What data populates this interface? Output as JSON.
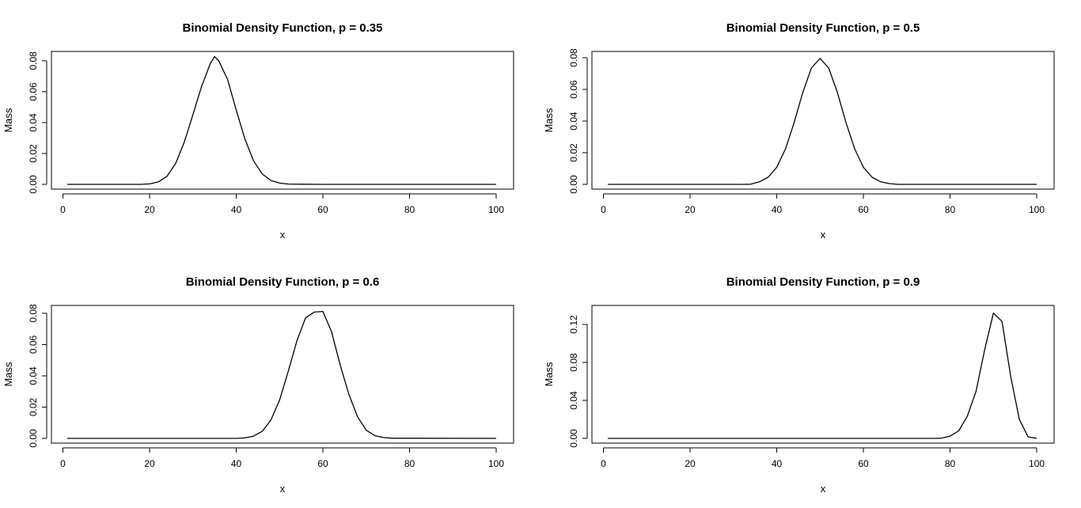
{
  "chart_data": [
    {
      "type": "line",
      "title": "Binomial Density Function, p = 0.35",
      "xlabel": "x",
      "ylabel": "Mass",
      "xlim": [
        1,
        100
      ],
      "ylim": [
        0,
        0.083
      ],
      "xticks": [
        0,
        20,
        40,
        60,
        80,
        100
      ],
      "xtick_labels": [
        "0",
        "20",
        "40",
        "60",
        "80",
        "100"
      ],
      "yticks": [
        0,
        0.02,
        0.04,
        0.06,
        0.08
      ],
      "ytick_labels": [
        "0.00",
        "0.02",
        "0.04",
        "0.06",
        "0.08"
      ],
      "grid": false,
      "x": [
        1,
        18,
        20,
        22,
        24,
        26,
        28,
        30,
        32,
        34,
        35,
        36,
        38,
        40,
        42,
        44,
        46,
        48,
        50,
        52,
        55,
        60,
        100
      ],
      "y": [
        0,
        0,
        0.0003,
        0.0016,
        0.0052,
        0.0134,
        0.0273,
        0.0452,
        0.0634,
        0.0782,
        0.0828,
        0.0798,
        0.0679,
        0.0481,
        0.0293,
        0.0152,
        0.0067,
        0.0025,
        0.0008,
        0.0002,
        0.0001,
        0,
        0
      ]
    },
    {
      "type": "line",
      "title": "Binomial Density Function, p = 0.5",
      "xlabel": "x",
      "ylabel": "Mass",
      "xlim": [
        1,
        100
      ],
      "ylim": [
        0,
        0.081
      ],
      "xticks": [
        0,
        20,
        40,
        60,
        80,
        100
      ],
      "xtick_labels": [
        "0",
        "20",
        "40",
        "60",
        "80",
        "100"
      ],
      "yticks": [
        0,
        0.02,
        0.04,
        0.06,
        0.08
      ],
      "ytick_labels": [
        "0.00",
        "0.02",
        "0.04",
        "0.06",
        "0.08"
      ],
      "grid": false,
      "x": [
        1,
        32,
        34,
        36,
        38,
        40,
        42,
        44,
        46,
        48,
        50,
        52,
        54,
        56,
        58,
        60,
        62,
        64,
        66,
        68,
        100
      ],
      "y": [
        0,
        0,
        0.0001,
        0.0016,
        0.0045,
        0.0108,
        0.0223,
        0.0389,
        0.058,
        0.0735,
        0.0796,
        0.0735,
        0.058,
        0.0389,
        0.0223,
        0.0108,
        0.0045,
        0.0016,
        0.0005,
        0,
        0
      ]
    },
    {
      "type": "line",
      "title": "Binomial Density Function, p = 0.6",
      "xlabel": "x",
      "ylabel": "Mass",
      "xlim": [
        1,
        100
      ],
      "ylim": [
        0,
        0.082
      ],
      "xticks": [
        0,
        20,
        40,
        60,
        80,
        100
      ],
      "xtick_labels": [
        "0",
        "20",
        "40",
        "60",
        "80",
        "100"
      ],
      "yticks": [
        0,
        0.02,
        0.04,
        0.06,
        0.08
      ],
      "ytick_labels": [
        "0.00",
        "0.02",
        "0.04",
        "0.06",
        "0.08"
      ],
      "grid": false,
      "x": [
        1,
        40,
        42,
        44,
        46,
        48,
        50,
        52,
        54,
        56,
        58,
        60,
        62,
        64,
        66,
        68,
        70,
        72,
        74,
        76,
        100
      ],
      "y": [
        0,
        0,
        0.0003,
        0.0014,
        0.0045,
        0.0117,
        0.0245,
        0.0428,
        0.0624,
        0.0771,
        0.0808,
        0.0812,
        0.0682,
        0.0469,
        0.0281,
        0.0138,
        0.0052,
        0.0017,
        0.0005,
        0.0001,
        0
      ]
    },
    {
      "type": "line",
      "title": "Binomial Density Function, p = 0.9",
      "xlabel": "x",
      "ylabel": "Mass",
      "xlim": [
        1,
        100
      ],
      "ylim": [
        0,
        0.135
      ],
      "xticks": [
        0,
        20,
        40,
        60,
        80,
        100
      ],
      "xtick_labels": [
        "0",
        "20",
        "40",
        "60",
        "80",
        "100"
      ],
      "yticks": [
        0,
        0.04,
        0.08,
        0.12
      ],
      "ytick_labels": [
        "0.00",
        "0.04",
        "0.08",
        "0.12"
      ],
      "grid": false,
      "x": [
        1,
        76,
        78,
        80,
        82,
        84,
        86,
        88,
        90,
        92,
        94,
        96,
        98,
        100
      ],
      "y": [
        0,
        0,
        0.0002,
        0.0023,
        0.0079,
        0.0234,
        0.0496,
        0.0935,
        0.1319,
        0.1232,
        0.0651,
        0.0199,
        0.0016,
        0
      ]
    }
  ]
}
